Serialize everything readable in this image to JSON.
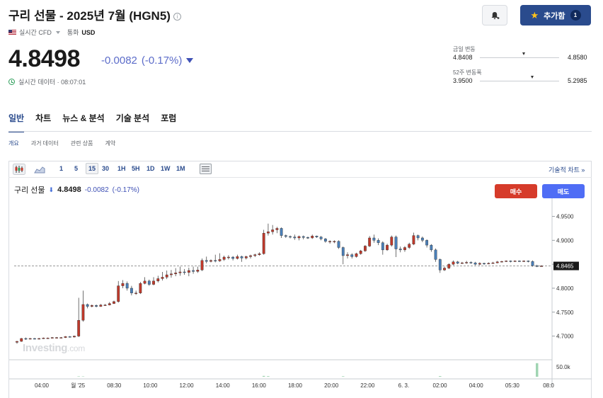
{
  "header": {
    "title": "구리 선물 - 2025년 7월 (HGN5)",
    "info_icon": "i",
    "cfd_label": "실시간 CFD",
    "currency_label": "통화",
    "currency_value": "USD"
  },
  "quote": {
    "price": "4.8498",
    "change": "-0.0082",
    "change_pct": "(-0.17%)",
    "realtime_text": "실시간 데이터 · 08:07:01"
  },
  "actions": {
    "add_label": "추가함",
    "add_count": "1"
  },
  "ranges": {
    "day_label": "금일 변동",
    "day_low": "4.8408",
    "day_high": "4.8580",
    "day_position": 0.55,
    "week52_label": "52주 변동폭",
    "week52_low": "3.9500",
    "week52_high": "5.2985",
    "week52_position": 0.66
  },
  "tabs": [
    "일반",
    "차트",
    "뉴스 & 분석",
    "기술 분석",
    "포럼"
  ],
  "subtabs": [
    "개요",
    "과거 데이터",
    "관련 상품",
    "계약"
  ],
  "toolbar": {
    "intervals": [
      "1",
      "5",
      "15",
      "30",
      "1H",
      "5H",
      "1D",
      "1W",
      "1M"
    ],
    "selected_interval": "15",
    "technical_link": "기술적 차트 »"
  },
  "chart_header": {
    "name": "구리 선물",
    "price": "4.8498",
    "change": "-0.0082",
    "change_pct": "(-0.17%)",
    "buy_label": "매수",
    "sell_label": "매도"
  },
  "watermark": {
    "brand": "Investing",
    "suffix": ".com"
  },
  "colors": {
    "up": "#c0392b",
    "down": "#4a7fb8",
    "accent": "#2a4b8d",
    "buy": "#d63b2a",
    "sell": "#4f6df5"
  },
  "chart_data": {
    "type": "candlestick",
    "y_ticks": [
      4.95,
      4.9,
      4.85,
      4.8,
      4.75,
      4.7
    ],
    "y_tick_labels": [
      "4.9500",
      "4.9000",
      "4.8500",
      "4.8000",
      "4.7500",
      "4.7000"
    ],
    "ylim": [
      4.655,
      4.973
    ],
    "current_price": 4.8465,
    "current_price_label": "4.8465",
    "x_tick_labels": [
      "04:00",
      "월 '25",
      "08:30",
      "10:00",
      "12:00",
      "14:00",
      "16:00",
      "18:00",
      "20:00",
      "22:00",
      "6. 3.",
      "02:00",
      "04:00",
      "05:30",
      "08:0"
    ],
    "volume_axis_label": "50.0k",
    "candles": [
      [
        4.687,
        4.689,
        4.684,
        4.69
      ],
      [
        4.689,
        4.695,
        4.688,
        4.696
      ],
      [
        4.695,
        4.694,
        4.692,
        4.697
      ],
      [
        4.694,
        4.695,
        4.693,
        4.696
      ],
      [
        4.695,
        4.694,
        4.693,
        4.696
      ],
      [
        4.694,
        4.695,
        4.693,
        4.696
      ],
      [
        4.695,
        4.696,
        4.694,
        4.697
      ],
      [
        4.696,
        4.696,
        4.695,
        4.697
      ],
      [
        4.696,
        4.697,
        4.695,
        4.698
      ],
      [
        4.697,
        4.697,
        4.695,
        4.698
      ],
      [
        4.697,
        4.697,
        4.696,
        4.698
      ],
      [
        4.697,
        4.699,
        4.696,
        4.7
      ],
      [
        4.699,
        4.698,
        4.697,
        4.7
      ],
      [
        4.698,
        4.7,
        4.697,
        4.701
      ],
      [
        4.7,
        4.733,
        4.698,
        4.78
      ],
      [
        4.733,
        4.766,
        4.73,
        4.795
      ],
      [
        4.766,
        4.762,
        4.758,
        4.768
      ],
      [
        4.762,
        4.764,
        4.76,
        4.766
      ],
      [
        4.764,
        4.762,
        4.76,
        4.766
      ],
      [
        4.762,
        4.765,
        4.761,
        4.767
      ],
      [
        4.765,
        4.765,
        4.763,
        4.767
      ],
      [
        4.765,
        4.768,
        4.764,
        4.771
      ],
      [
        4.768,
        4.772,
        4.767,
        4.774
      ],
      [
        4.772,
        4.805,
        4.77,
        4.815
      ],
      [
        4.805,
        4.81,
        4.8,
        4.817
      ],
      [
        4.81,
        4.8,
        4.795,
        4.814
      ],
      [
        4.8,
        4.79,
        4.785,
        4.805
      ],
      [
        4.79,
        4.79,
        4.786,
        4.795
      ],
      [
        4.79,
        4.81,
        4.788,
        4.813
      ],
      [
        4.81,
        4.815,
        4.808,
        4.823
      ],
      [
        4.815,
        4.808,
        4.805,
        4.818
      ],
      [
        4.808,
        4.815,
        4.806,
        4.823
      ],
      [
        4.815,
        4.82,
        4.812,
        4.826
      ],
      [
        4.82,
        4.823,
        4.816,
        4.834
      ],
      [
        4.823,
        4.828,
        4.819,
        4.837
      ],
      [
        4.828,
        4.83,
        4.822,
        4.838
      ],
      [
        4.83,
        4.832,
        4.825,
        4.842
      ],
      [
        4.832,
        4.834,
        4.826,
        4.845
      ],
      [
        4.834,
        4.833,
        4.828,
        4.84
      ],
      [
        4.833,
        4.837,
        4.825,
        4.843
      ],
      [
        4.837,
        4.835,
        4.83,
        4.845
      ],
      [
        4.835,
        4.838,
        4.832,
        4.845
      ],
      [
        4.838,
        4.858,
        4.836,
        4.862
      ],
      [
        4.858,
        4.856,
        4.852,
        4.866
      ],
      [
        4.856,
        4.858,
        4.854,
        4.86
      ],
      [
        4.858,
        4.857,
        4.854,
        4.87
      ],
      [
        4.857,
        4.86,
        4.855,
        4.873
      ],
      [
        4.86,
        4.865,
        4.857,
        4.868
      ],
      [
        4.865,
        4.865,
        4.86,
        4.869
      ],
      [
        4.865,
        4.862,
        4.858,
        4.867
      ],
      [
        4.862,
        4.866,
        4.86,
        4.87
      ],
      [
        4.866,
        4.863,
        4.855,
        4.868
      ],
      [
        4.863,
        4.866,
        4.86,
        4.868
      ],
      [
        4.866,
        4.868,
        4.862,
        4.87
      ],
      [
        4.868,
        4.87,
        4.865,
        4.872
      ],
      [
        4.87,
        4.872,
        4.868,
        4.875
      ],
      [
        4.872,
        4.915,
        4.87,
        4.922
      ],
      [
        4.915,
        4.918,
        4.91,
        4.935
      ],
      [
        4.918,
        4.922,
        4.912,
        4.932
      ],
      [
        4.922,
        4.925,
        4.915,
        4.928
      ],
      [
        4.925,
        4.91,
        4.905,
        4.927
      ],
      [
        4.91,
        4.908,
        4.905,
        4.912
      ],
      [
        4.908,
        4.907,
        4.904,
        4.91
      ],
      [
        4.907,
        4.905,
        4.901,
        4.912
      ],
      [
        4.905,
        4.908,
        4.9,
        4.91
      ],
      [
        4.908,
        4.906,
        4.902,
        4.91
      ],
      [
        4.906,
        4.905,
        4.903,
        4.908
      ],
      [
        4.905,
        4.909,
        4.903,
        4.912
      ],
      [
        4.909,
        4.907,
        4.905,
        4.91
      ],
      [
        4.907,
        4.903,
        4.9,
        4.909
      ],
      [
        4.903,
        4.898,
        4.895,
        4.905
      ],
      [
        4.898,
        4.898,
        4.893,
        4.9
      ],
      [
        4.898,
        4.898,
        4.894,
        4.9
      ],
      [
        4.898,
        4.885,
        4.882,
        4.9
      ],
      [
        4.885,
        4.868,
        4.85,
        4.887
      ],
      [
        4.868,
        4.87,
        4.862,
        4.875
      ],
      [
        4.87,
        4.866,
        4.862,
        4.873
      ],
      [
        4.866,
        4.872,
        4.864,
        4.874
      ],
      [
        4.872,
        4.878,
        4.87,
        4.88
      ],
      [
        4.878,
        4.888,
        4.876,
        4.89
      ],
      [
        4.888,
        4.905,
        4.886,
        4.909
      ],
      [
        4.905,
        4.9,
        4.895,
        4.912
      ],
      [
        4.9,
        4.895,
        4.89,
        4.904
      ],
      [
        4.895,
        4.88,
        4.87,
        4.898
      ],
      [
        4.88,
        4.89,
        4.878,
        4.893
      ],
      [
        4.89,
        4.907,
        4.887,
        4.91
      ],
      [
        4.907,
        4.882,
        4.865,
        4.91
      ],
      [
        4.882,
        4.88,
        4.875,
        4.887
      ],
      [
        4.88,
        4.885,
        4.876,
        4.888
      ],
      [
        4.885,
        4.892,
        4.882,
        4.895
      ],
      [
        4.892,
        4.91,
        4.89,
        4.916
      ],
      [
        4.91,
        4.905,
        4.9,
        4.912
      ],
      [
        4.905,
        4.9,
        4.896,
        4.908
      ],
      [
        4.9,
        4.89,
        4.885,
        4.902
      ],
      [
        4.89,
        4.88,
        4.876,
        4.892
      ],
      [
        4.88,
        4.86,
        4.855,
        4.883
      ],
      [
        4.86,
        4.838,
        4.832,
        4.862
      ],
      [
        4.838,
        4.842,
        4.836,
        4.845
      ],
      [
        4.842,
        4.85,
        4.84,
        4.852
      ],
      [
        4.85,
        4.855,
        4.848,
        4.858
      ],
      [
        4.855,
        4.852,
        4.85,
        4.857
      ],
      [
        4.852,
        4.853,
        4.851,
        4.855
      ],
      [
        4.853,
        4.854,
        4.851,
        4.857
      ],
      [
        4.854,
        4.853,
        4.851,
        4.856
      ],
      [
        4.853,
        4.85,
        4.848,
        4.855
      ],
      [
        4.85,
        4.852,
        4.848,
        4.854
      ],
      [
        4.852,
        4.851,
        4.849,
        4.853
      ],
      [
        4.851,
        4.852,
        4.85,
        4.854
      ],
      [
        4.852,
        4.853,
        4.851,
        4.855
      ],
      [
        4.853,
        4.855,
        4.852,
        4.857
      ],
      [
        4.855,
        4.856,
        4.854,
        4.857
      ],
      [
        4.856,
        4.857,
        4.855,
        4.858
      ],
      [
        4.857,
        4.856,
        4.854,
        4.858
      ],
      [
        4.856,
        4.857,
        4.855,
        4.858
      ],
      [
        4.857,
        4.856,
        4.855,
        4.858
      ],
      [
        4.856,
        4.857,
        4.855,
        4.858
      ],
      [
        4.857,
        4.856,
        4.854,
        4.858
      ],
      [
        4.856,
        4.847,
        4.845,
        4.858
      ],
      [
        4.847,
        4.846,
        4.844,
        4.849
      ],
      [
        4.846,
        4.8465,
        4.845,
        4.848
      ]
    ],
    "volume_bars": [
      {
        "index": 14,
        "value": 1.2
      },
      {
        "index": 15,
        "value": 1.0
      },
      {
        "index": 56,
        "value": 2.5
      },
      {
        "index": 57,
        "value": 1.8
      },
      {
        "index": 74,
        "value": 1.5
      },
      {
        "index": 96,
        "value": 2.0
      },
      {
        "index": 118,
        "value": 40.0
      }
    ]
  }
}
